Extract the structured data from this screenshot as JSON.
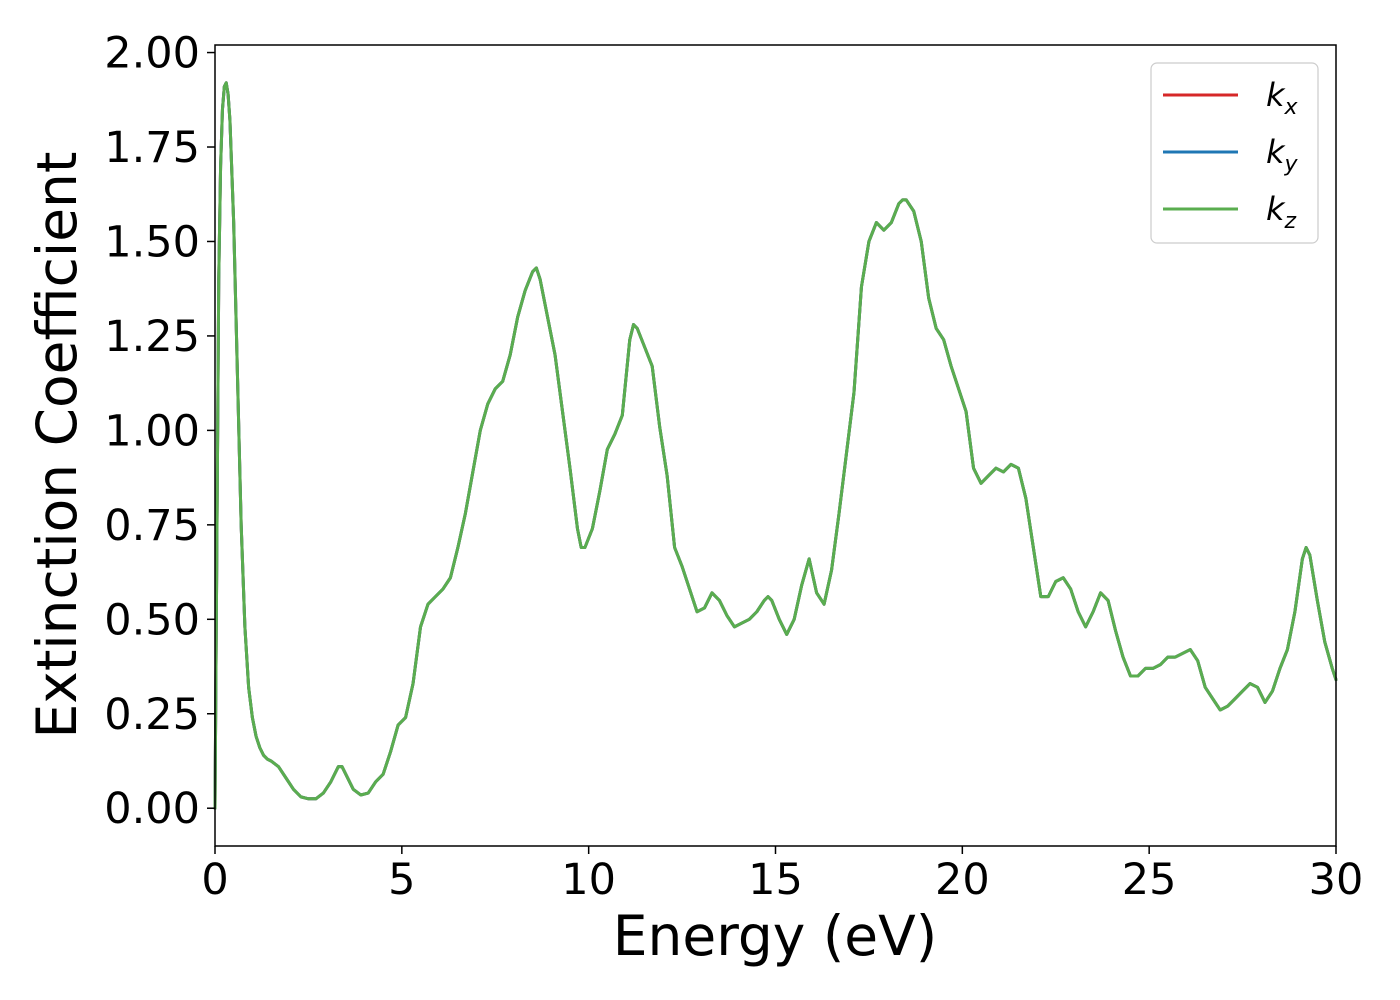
{
  "chart_data": {
    "type": "line",
    "title": "",
    "xlabel": "Energy (eV)",
    "ylabel": "Extinction Coefficient",
    "xlim": [
      0,
      30
    ],
    "ylim": [
      -0.1,
      2.02
    ],
    "xticks": [
      0,
      5,
      10,
      15,
      20,
      25,
      30
    ],
    "xtick_labels": [
      "0",
      "5",
      "10",
      "15",
      "20",
      "25",
      "30"
    ],
    "yticks": [
      0,
      0.25,
      0.5,
      0.75,
      1.0,
      1.25,
      1.5,
      1.75,
      2.0
    ],
    "ytick_labels": [
      "0.00",
      "0.25",
      "0.50",
      "0.75",
      "1.00",
      "1.25",
      "1.50",
      "1.75",
      "2.00"
    ],
    "grid": false,
    "legend_position": "top-right",
    "x": [
      0,
      0.05,
      0.1,
      0.15,
      0.2,
      0.25,
      0.3,
      0.35,
      0.4,
      0.5,
      0.6,
      0.7,
      0.8,
      0.9,
      1.0,
      1.1,
      1.2,
      1.3,
      1.4,
      1.5,
      1.7,
      1.9,
      2.1,
      2.3,
      2.5,
      2.7,
      2.9,
      3.1,
      3.3,
      3.4,
      3.5,
      3.7,
      3.9,
      4.1,
      4.3,
      4.5,
      4.7,
      4.9,
      5.1,
      5.3,
      5.5,
      5.7,
      5.9,
      6.1,
      6.3,
      6.5,
      6.7,
      6.9,
      7.1,
      7.3,
      7.5,
      7.7,
      7.9,
      8.1,
      8.3,
      8.5,
      8.6,
      8.7,
      8.9,
      9.1,
      9.3,
      9.5,
      9.7,
      9.8,
      9.9,
      10.1,
      10.3,
      10.5,
      10.7,
      10.9,
      11.1,
      11.2,
      11.3,
      11.5,
      11.7,
      11.9,
      12.1,
      12.3,
      12.5,
      12.7,
      12.9,
      13.1,
      13.3,
      13.5,
      13.7,
      13.9,
      14.1,
      14.3,
      14.5,
      14.7,
      14.8,
      14.9,
      15.1,
      15.3,
      15.5,
      15.7,
      15.9,
      16.1,
      16.3,
      16.5,
      16.7,
      16.9,
      17.1,
      17.3,
      17.5,
      17.7,
      17.9,
      18.1,
      18.3,
      18.4,
      18.5,
      18.7,
      18.9,
      19.1,
      19.3,
      19.5,
      19.7,
      19.9,
      20.1,
      20.3,
      20.5,
      20.7,
      20.9,
      21.1,
      21.3,
      21.5,
      21.7,
      21.9,
      22.1,
      22.3,
      22.5,
      22.7,
      22.9,
      23.1,
      23.3,
      23.5,
      23.7,
      23.9,
      24.1,
      24.3,
      24.5,
      24.7,
      24.9,
      25.1,
      25.3,
      25.5,
      25.7,
      25.9,
      26.1,
      26.3,
      26.5,
      26.7,
      26.9,
      27.1,
      27.3,
      27.5,
      27.7,
      27.9,
      28.1,
      28.3,
      28.5,
      28.7,
      28.9,
      29.1,
      29.2,
      29.3,
      29.5,
      29.7,
      29.9,
      30.0
    ],
    "series": [
      {
        "name": "k_x",
        "color": "#d62728",
        "values": [
          0.0,
          0.7,
          1.4,
          1.7,
          1.85,
          1.91,
          1.92,
          1.89,
          1.82,
          1.55,
          1.15,
          0.75,
          0.48,
          0.32,
          0.24,
          0.19,
          0.16,
          0.14,
          0.13,
          0.125,
          0.11,
          0.08,
          0.05,
          0.03,
          0.025,
          0.025,
          0.04,
          0.07,
          0.11,
          0.11,
          0.09,
          0.05,
          0.035,
          0.04,
          0.07,
          0.09,
          0.15,
          0.22,
          0.24,
          0.33,
          0.48,
          0.54,
          0.56,
          0.58,
          0.61,
          0.69,
          0.78,
          0.89,
          1.0,
          1.07,
          1.11,
          1.13,
          1.2,
          1.3,
          1.37,
          1.42,
          1.43,
          1.4,
          1.3,
          1.2,
          1.05,
          0.9,
          0.74,
          0.69,
          0.69,
          0.74,
          0.84,
          0.95,
          0.99,
          1.04,
          1.24,
          1.28,
          1.27,
          1.22,
          1.17,
          1.01,
          0.88,
          0.69,
          0.64,
          0.58,
          0.52,
          0.53,
          0.57,
          0.55,
          0.51,
          0.48,
          0.49,
          0.5,
          0.52,
          0.55,
          0.56,
          0.55,
          0.5,
          0.46,
          0.5,
          0.59,
          0.66,
          0.57,
          0.54,
          0.63,
          0.78,
          0.94,
          1.1,
          1.38,
          1.5,
          1.55,
          1.53,
          1.55,
          1.6,
          1.61,
          1.61,
          1.58,
          1.5,
          1.35,
          1.27,
          1.24,
          1.17,
          1.11,
          1.05,
          0.9,
          0.86,
          0.88,
          0.9,
          0.89,
          0.91,
          0.9,
          0.82,
          0.69,
          0.56,
          0.56,
          0.6,
          0.61,
          0.58,
          0.52,
          0.48,
          0.52,
          0.57,
          0.55,
          0.47,
          0.4,
          0.35,
          0.35,
          0.37,
          0.37,
          0.38,
          0.4,
          0.4,
          0.41,
          0.42,
          0.39,
          0.32,
          0.29,
          0.26,
          0.27,
          0.29,
          0.31,
          0.33,
          0.32,
          0.28,
          0.31,
          0.37,
          0.42,
          0.52,
          0.66,
          0.69,
          0.67,
          0.55,
          0.44,
          0.37,
          0.34
        ]
      },
      {
        "name": "k_y",
        "color": "#1f77b4",
        "values": [
          0.0,
          0.7,
          1.4,
          1.7,
          1.85,
          1.91,
          1.92,
          1.89,
          1.82,
          1.55,
          1.15,
          0.75,
          0.48,
          0.32,
          0.24,
          0.19,
          0.16,
          0.14,
          0.13,
          0.125,
          0.11,
          0.08,
          0.05,
          0.03,
          0.025,
          0.025,
          0.04,
          0.07,
          0.11,
          0.11,
          0.09,
          0.05,
          0.035,
          0.04,
          0.07,
          0.09,
          0.15,
          0.22,
          0.24,
          0.33,
          0.48,
          0.54,
          0.56,
          0.58,
          0.61,
          0.69,
          0.78,
          0.89,
          1.0,
          1.07,
          1.11,
          1.13,
          1.2,
          1.3,
          1.37,
          1.42,
          1.43,
          1.4,
          1.3,
          1.2,
          1.05,
          0.9,
          0.74,
          0.69,
          0.69,
          0.74,
          0.84,
          0.95,
          0.99,
          1.04,
          1.24,
          1.28,
          1.27,
          1.22,
          1.17,
          1.01,
          0.88,
          0.69,
          0.64,
          0.58,
          0.52,
          0.53,
          0.57,
          0.55,
          0.51,
          0.48,
          0.49,
          0.5,
          0.52,
          0.55,
          0.56,
          0.55,
          0.5,
          0.46,
          0.5,
          0.59,
          0.66,
          0.57,
          0.54,
          0.63,
          0.78,
          0.94,
          1.1,
          1.38,
          1.5,
          1.55,
          1.53,
          1.55,
          1.6,
          1.61,
          1.61,
          1.58,
          1.5,
          1.35,
          1.27,
          1.24,
          1.17,
          1.11,
          1.05,
          0.9,
          0.86,
          0.88,
          0.9,
          0.89,
          0.91,
          0.9,
          0.82,
          0.69,
          0.56,
          0.56,
          0.6,
          0.61,
          0.58,
          0.52,
          0.48,
          0.52,
          0.57,
          0.55,
          0.47,
          0.4,
          0.35,
          0.35,
          0.37,
          0.37,
          0.38,
          0.4,
          0.4,
          0.41,
          0.42,
          0.39,
          0.32,
          0.29,
          0.26,
          0.27,
          0.29,
          0.31,
          0.33,
          0.32,
          0.28,
          0.31,
          0.37,
          0.42,
          0.52,
          0.66,
          0.69,
          0.67,
          0.55,
          0.44,
          0.37,
          0.34
        ]
      },
      {
        "name": "k_z",
        "color": "#5aad4f",
        "values": [
          0.0,
          0.7,
          1.4,
          1.7,
          1.85,
          1.91,
          1.92,
          1.89,
          1.82,
          1.55,
          1.15,
          0.75,
          0.48,
          0.32,
          0.24,
          0.19,
          0.16,
          0.14,
          0.13,
          0.125,
          0.11,
          0.08,
          0.05,
          0.03,
          0.025,
          0.025,
          0.04,
          0.07,
          0.11,
          0.11,
          0.09,
          0.05,
          0.035,
          0.04,
          0.07,
          0.09,
          0.15,
          0.22,
          0.24,
          0.33,
          0.48,
          0.54,
          0.56,
          0.58,
          0.61,
          0.69,
          0.78,
          0.89,
          1.0,
          1.07,
          1.11,
          1.13,
          1.2,
          1.3,
          1.37,
          1.42,
          1.43,
          1.4,
          1.3,
          1.2,
          1.05,
          0.9,
          0.74,
          0.69,
          0.69,
          0.74,
          0.84,
          0.95,
          0.99,
          1.04,
          1.24,
          1.28,
          1.27,
          1.22,
          1.17,
          1.01,
          0.88,
          0.69,
          0.64,
          0.58,
          0.52,
          0.53,
          0.57,
          0.55,
          0.51,
          0.48,
          0.49,
          0.5,
          0.52,
          0.55,
          0.56,
          0.55,
          0.5,
          0.46,
          0.5,
          0.59,
          0.66,
          0.57,
          0.54,
          0.63,
          0.78,
          0.94,
          1.1,
          1.38,
          1.5,
          1.55,
          1.53,
          1.55,
          1.6,
          1.61,
          1.61,
          1.58,
          1.5,
          1.35,
          1.27,
          1.24,
          1.17,
          1.11,
          1.05,
          0.9,
          0.86,
          0.88,
          0.9,
          0.89,
          0.91,
          0.9,
          0.82,
          0.69,
          0.56,
          0.56,
          0.6,
          0.61,
          0.58,
          0.52,
          0.48,
          0.52,
          0.57,
          0.55,
          0.47,
          0.4,
          0.35,
          0.35,
          0.37,
          0.37,
          0.38,
          0.4,
          0.4,
          0.41,
          0.42,
          0.39,
          0.32,
          0.29,
          0.26,
          0.27,
          0.29,
          0.31,
          0.33,
          0.32,
          0.28,
          0.31,
          0.37,
          0.42,
          0.52,
          0.66,
          0.69,
          0.67,
          0.55,
          0.44,
          0.37,
          0.34
        ]
      }
    ],
    "legend": [
      {
        "base": "k",
        "sub": "x",
        "color": "#d62728"
      },
      {
        "base": "k",
        "sub": "y",
        "color": "#1f77b4"
      },
      {
        "base": "k",
        "sub": "z",
        "color": "#5aad4f"
      }
    ]
  }
}
